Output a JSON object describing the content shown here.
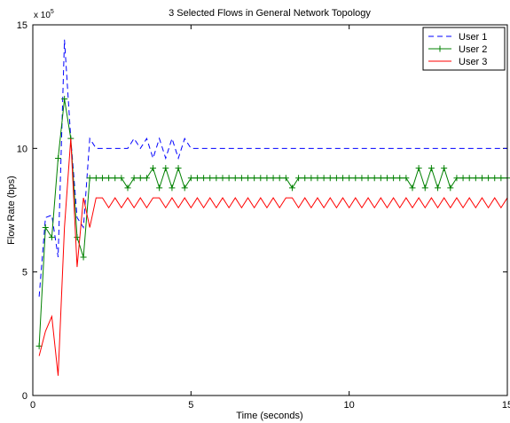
{
  "chart_data": {
    "type": "line",
    "title": "3 Selected Flows in General Network Topology",
    "xlabel": "Time (seconds)",
    "ylabel": "Flow Rate (bps)",
    "y_multiplier_base": "x 10",
    "y_multiplier_exp": "5",
    "xlim": [
      0,
      15
    ],
    "ylim": [
      0,
      15
    ],
    "xticks": [
      0,
      5,
      10,
      15
    ],
    "yticks": [
      0,
      5,
      10,
      15
    ],
    "x_tick_labels": [
      "0",
      "5",
      "10",
      "15"
    ],
    "y_tick_labels": [
      "0",
      "5",
      "10",
      "15"
    ],
    "grid": false,
    "legend_position": "top-right",
    "series": [
      {
        "name": "User 1",
        "color": "#0000ff",
        "line_style": "dashed",
        "marker": "none",
        "x": [
          0.2,
          0.4,
          0.6,
          0.8,
          1.0,
          1.2,
          1.4,
          1.6,
          1.8,
          2.0,
          2.2,
          2.4,
          2.6,
          2.8,
          3.0,
          3.2,
          3.4,
          3.6,
          3.8,
          4.0,
          4.2,
          4.4,
          4.6,
          4.8,
          5.0,
          15.0
        ],
        "y": [
          4.0,
          7.2,
          7.3,
          5.6,
          14.4,
          10.4,
          7.2,
          6.8,
          10.4,
          10.0,
          10.0,
          10.0,
          10.0,
          10.0,
          10.0,
          10.4,
          10.0,
          10.4,
          9.6,
          10.4,
          9.6,
          10.4,
          9.6,
          10.4,
          10.0,
          10.0
        ]
      },
      {
        "name": "User 2",
        "color": "#008000",
        "line_style": "solid",
        "marker": "plus",
        "x": [
          0.2,
          0.4,
          0.6,
          0.8,
          1.0,
          1.2,
          1.4,
          1.6,
          1.8,
          2.0,
          2.2,
          2.4,
          2.6,
          2.8,
          3.0,
          3.2,
          3.4,
          3.6,
          3.8,
          4.0,
          4.2,
          4.4,
          4.6,
          4.8,
          5.0,
          5.2,
          5.4,
          5.6,
          5.8,
          6.0,
          6.2,
          6.4,
          6.6,
          6.8,
          7.0,
          7.2,
          7.4,
          7.6,
          7.8,
          8.0,
          8.2,
          8.4,
          8.6,
          8.8,
          9.0,
          9.2,
          9.4,
          9.6,
          9.8,
          10.0,
          10.2,
          10.4,
          10.6,
          10.8,
          11.0,
          11.2,
          11.4,
          11.6,
          11.8,
          12.0,
          12.2,
          12.4,
          12.6,
          12.8,
          13.0,
          13.2,
          13.4,
          13.6,
          13.8,
          14.0,
          14.2,
          14.4,
          14.6,
          14.8,
          15.0
        ],
        "y": [
          2.0,
          6.8,
          6.4,
          9.6,
          12.0,
          10.4,
          6.4,
          5.6,
          8.8,
          8.8,
          8.8,
          8.8,
          8.8,
          8.8,
          8.4,
          8.8,
          8.8,
          8.8,
          9.2,
          8.4,
          9.2,
          8.4,
          9.2,
          8.4,
          8.8,
          8.8,
          8.8,
          8.8,
          8.8,
          8.8,
          8.8,
          8.8,
          8.8,
          8.8,
          8.8,
          8.8,
          8.8,
          8.8,
          8.8,
          8.8,
          8.4,
          8.8,
          8.8,
          8.8,
          8.8,
          8.8,
          8.8,
          8.8,
          8.8,
          8.8,
          8.8,
          8.8,
          8.8,
          8.8,
          8.8,
          8.8,
          8.8,
          8.8,
          8.8,
          8.4,
          9.2,
          8.4,
          9.2,
          8.4,
          9.2,
          8.4,
          8.8,
          8.8,
          8.8,
          8.8,
          8.8,
          8.8,
          8.8,
          8.8,
          8.8
        ]
      },
      {
        "name": "User 3",
        "color": "#ff0000",
        "line_style": "solid",
        "marker": "none",
        "x": [
          0.2,
          0.4,
          0.6,
          0.8,
          1.0,
          1.2,
          1.4,
          1.6,
          1.8,
          2.0,
          2.2,
          2.4,
          2.6,
          2.8,
          3.0,
          3.2,
          3.4,
          3.6,
          3.8,
          4.0,
          4.2,
          4.4,
          4.6,
          4.8,
          5.0,
          5.2,
          5.4,
          5.6,
          5.8,
          6.0,
          6.2,
          6.4,
          6.6,
          6.8,
          7.0,
          7.2,
          7.4,
          7.6,
          7.8,
          8.0,
          8.2,
          8.4,
          8.6,
          8.8,
          9.0,
          9.2,
          9.4,
          9.6,
          9.8,
          10.0,
          10.2,
          10.4,
          10.6,
          10.8,
          11.0,
          11.2,
          11.4,
          11.6,
          11.8,
          12.0,
          12.2,
          12.4,
          12.6,
          12.8,
          13.0,
          13.2,
          13.4,
          13.6,
          13.8,
          14.0,
          14.2,
          14.4,
          14.6,
          14.8,
          15.0
        ],
        "y": [
          1.6,
          2.6,
          3.2,
          0.8,
          6.8,
          10.4,
          5.2,
          8.0,
          6.8,
          8.0,
          8.0,
          7.6,
          8.0,
          7.6,
          8.0,
          7.6,
          8.0,
          7.6,
          8.0,
          8.0,
          7.6,
          8.0,
          7.6,
          8.0,
          7.6,
          8.0,
          7.6,
          8.0,
          7.6,
          8.0,
          7.6,
          8.0,
          7.6,
          8.0,
          7.6,
          8.0,
          7.6,
          8.0,
          7.6,
          8.0,
          8.0,
          7.6,
          8.0,
          7.6,
          8.0,
          7.6,
          8.0,
          7.6,
          8.0,
          7.6,
          8.0,
          7.6,
          8.0,
          7.6,
          8.0,
          7.6,
          8.0,
          7.6,
          8.0,
          7.6,
          8.0,
          7.6,
          8.0,
          7.6,
          8.0,
          7.6,
          8.0,
          7.6,
          8.0,
          7.6,
          8.0,
          7.6,
          8.0,
          7.6,
          8.0
        ]
      }
    ]
  }
}
